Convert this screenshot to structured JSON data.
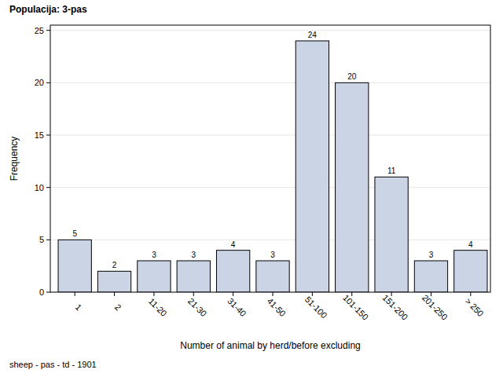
{
  "chart_data": {
    "type": "bar",
    "title": "Populacija: 3-pas",
    "x_label": "Number of animal by herd/before excluding",
    "y_label": "Frequency",
    "annotations": [
      "sheep - pas - td - 1901"
    ],
    "categories": [
      "1",
      "2",
      "11-20",
      "21-30",
      "31-40",
      "41-50",
      "51-100",
      "101-150",
      "151-200",
      "201-250",
      "> 250"
    ],
    "values": [
      5,
      2,
      3,
      3,
      4,
      3,
      24,
      20,
      11,
      3,
      4
    ],
    "color": "#cad4e5",
    "ylim": [
      0,
      25.5
    ],
    "yticks": [
      0,
      5,
      10,
      15,
      20,
      25
    ],
    "grid": true,
    "data_labels": true
  }
}
